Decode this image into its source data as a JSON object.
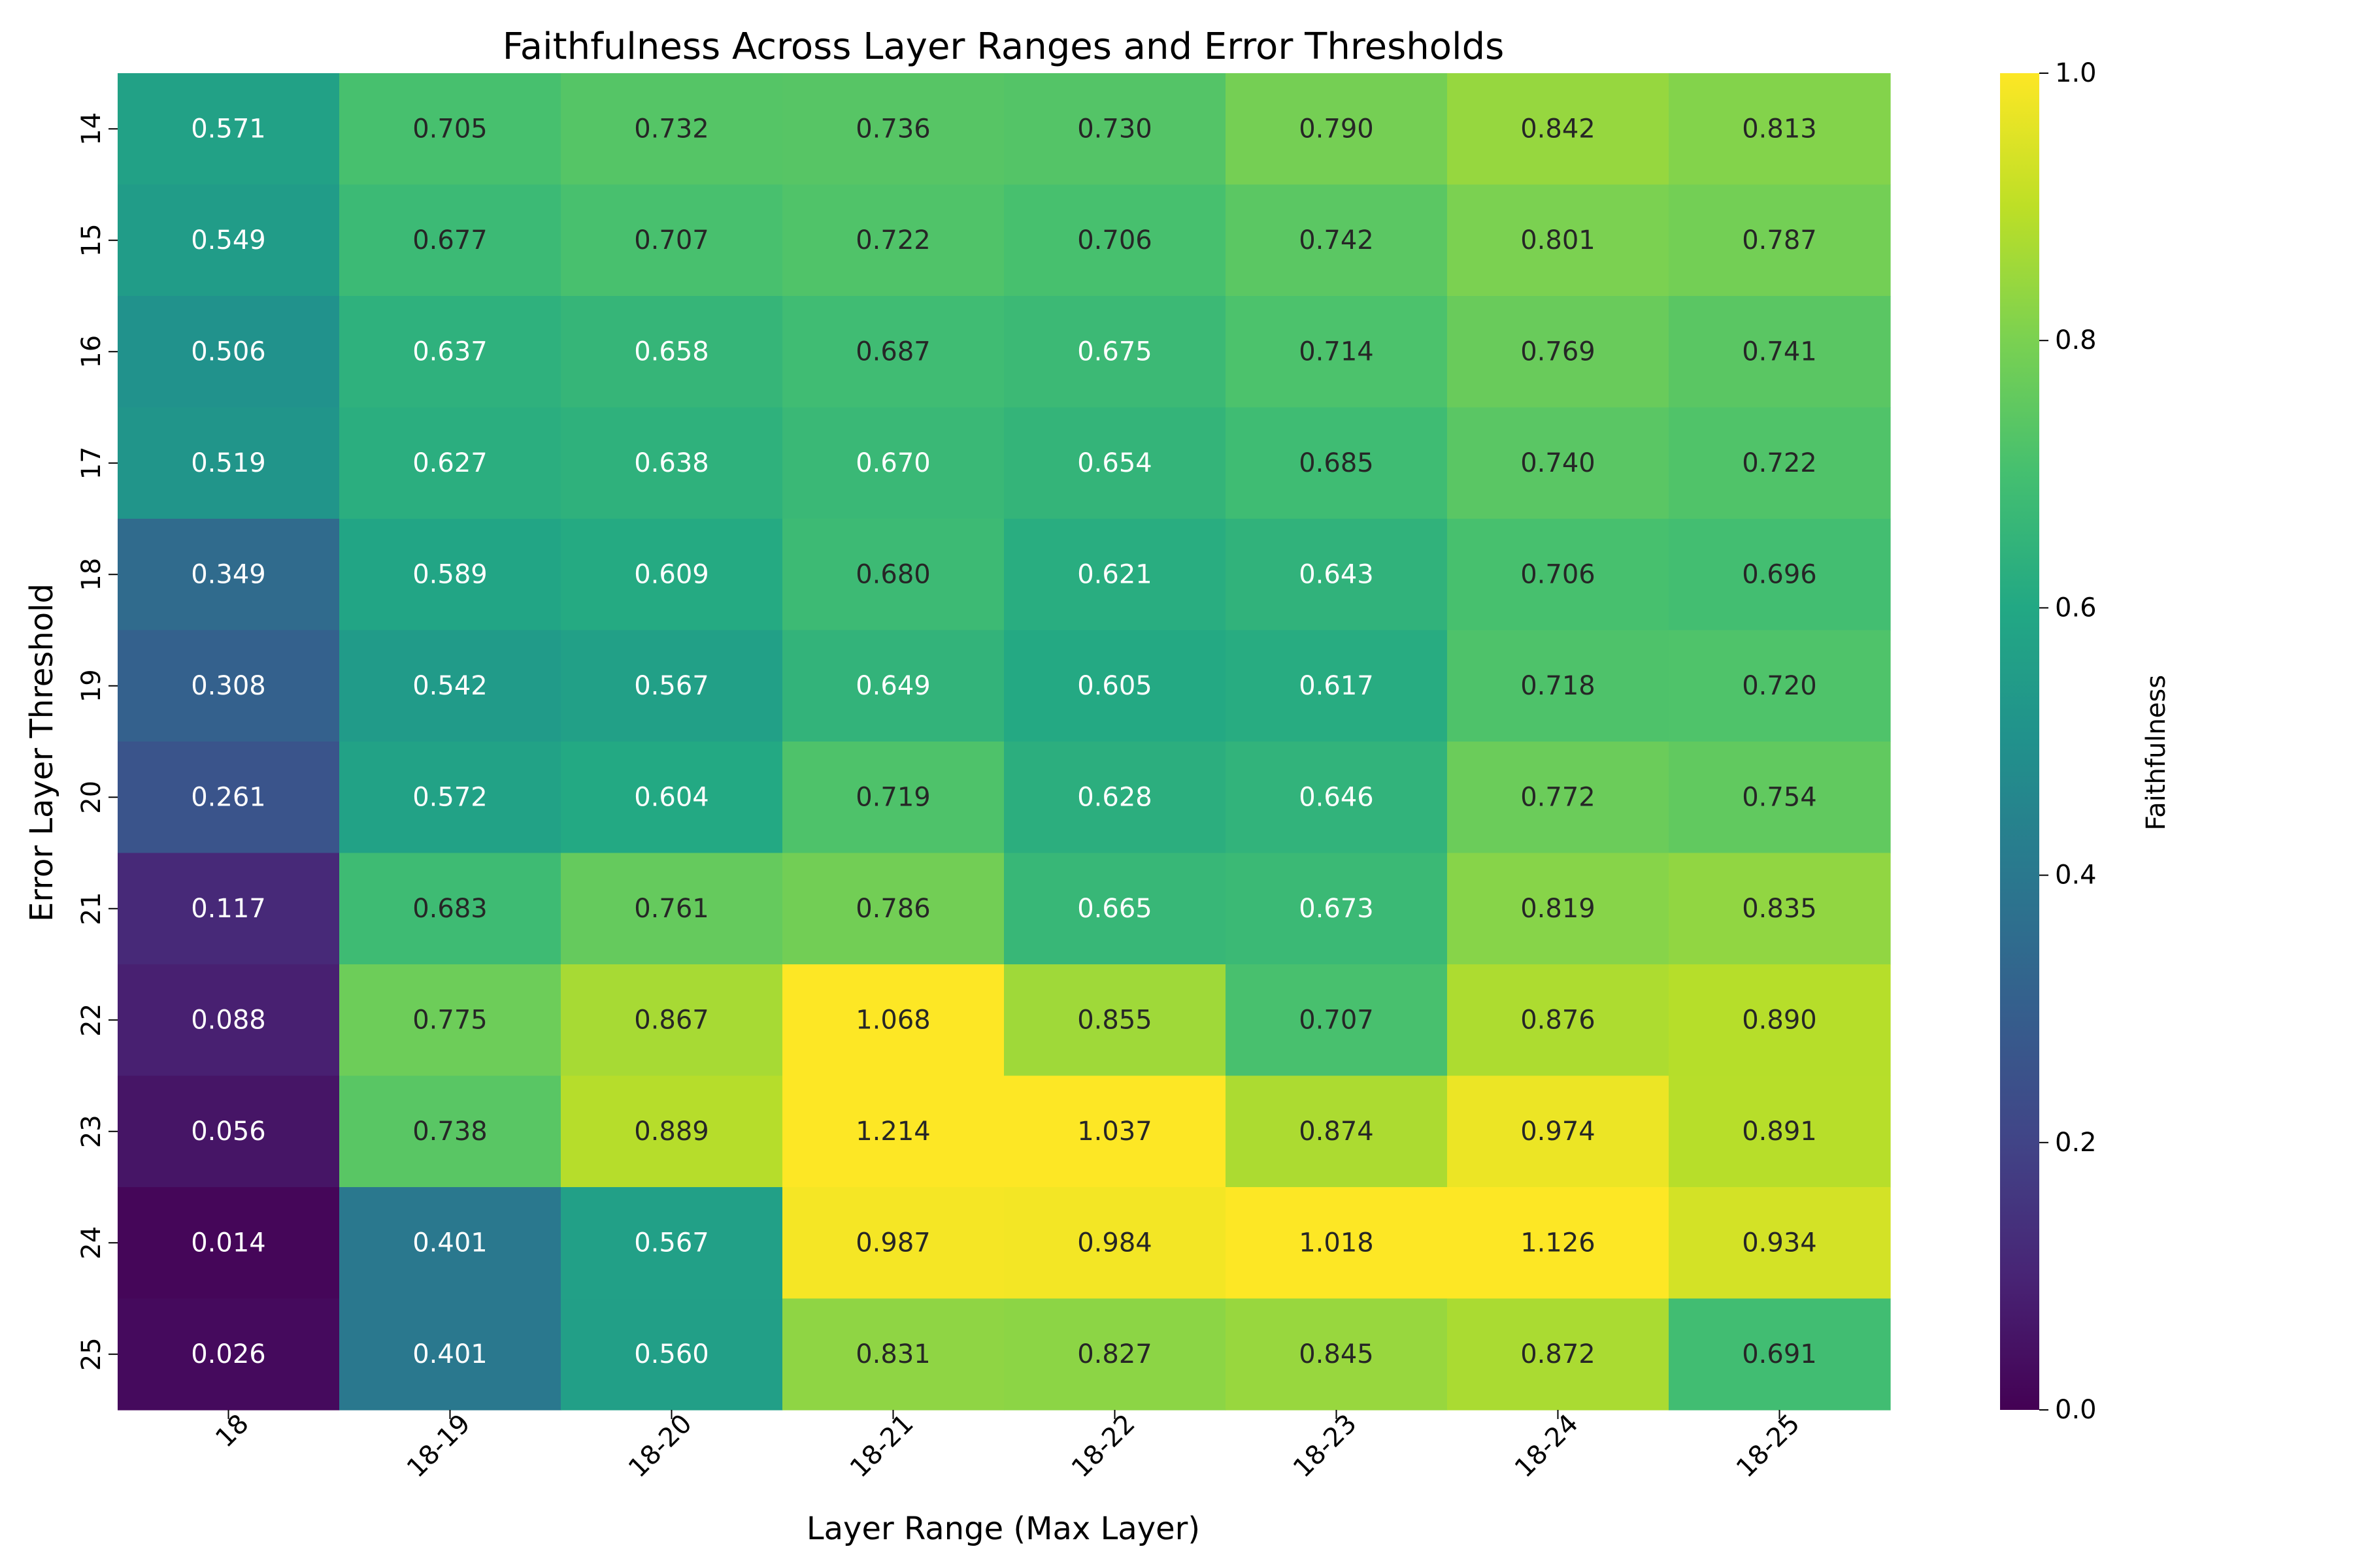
{
  "chart_data": {
    "type": "heatmap",
    "title": "Faithfulness Across Layer Ranges and Error Thresholds",
    "xlabel": "Layer Range (Max Layer)",
    "ylabel": "Error Layer Threshold",
    "x_categories": [
      "18",
      "18-19",
      "18-20",
      "18-21",
      "18-22",
      "18-23",
      "18-24",
      "18-25"
    ],
    "y_categories": [
      "14",
      "15",
      "16",
      "17",
      "18",
      "19",
      "20",
      "21",
      "22",
      "23",
      "24",
      "25"
    ],
    "values": [
      [
        0.571,
        0.705,
        0.732,
        0.736,
        0.73,
        0.79,
        0.842,
        0.813
      ],
      [
        0.549,
        0.677,
        0.707,
        0.722,
        0.706,
        0.742,
        0.801,
        0.787
      ],
      [
        0.506,
        0.637,
        0.658,
        0.687,
        0.675,
        0.714,
        0.769,
        0.741
      ],
      [
        0.519,
        0.627,
        0.638,
        0.67,
        0.654,
        0.685,
        0.74,
        0.722
      ],
      [
        0.349,
        0.589,
        0.609,
        0.68,
        0.621,
        0.643,
        0.706,
        0.696
      ],
      [
        0.308,
        0.542,
        0.567,
        0.649,
        0.605,
        0.617,
        0.718,
        0.72
      ],
      [
        0.261,
        0.572,
        0.604,
        0.719,
        0.628,
        0.646,
        0.772,
        0.754
      ],
      [
        0.117,
        0.683,
        0.761,
        0.786,
        0.665,
        0.673,
        0.819,
        0.835
      ],
      [
        0.088,
        0.775,
        0.867,
        1.068,
        0.855,
        0.707,
        0.876,
        0.89
      ],
      [
        0.056,
        0.738,
        0.889,
        1.214,
        1.037,
        0.874,
        0.974,
        0.891
      ],
      [
        0.014,
        0.401,
        0.567,
        0.987,
        0.984,
        1.018,
        1.126,
        0.934
      ],
      [
        0.026,
        0.401,
        0.56,
        0.831,
        0.827,
        0.845,
        0.872,
        0.691
      ]
    ],
    "value_format_decimals": 3,
    "colormap": "viridis",
    "color_range": [
      0.0,
      1.0
    ],
    "colorbar": {
      "label": "Faithfulness",
      "ticks": [
        "0.0",
        "0.2",
        "0.4",
        "0.6",
        "0.8",
        "1.0"
      ],
      "tick_values": [
        0.0,
        0.2,
        0.4,
        0.6,
        0.8,
        1.0
      ]
    },
    "x_tick_rotation_deg": 45,
    "y_tick_rotation_deg": 90,
    "grid": false
  }
}
